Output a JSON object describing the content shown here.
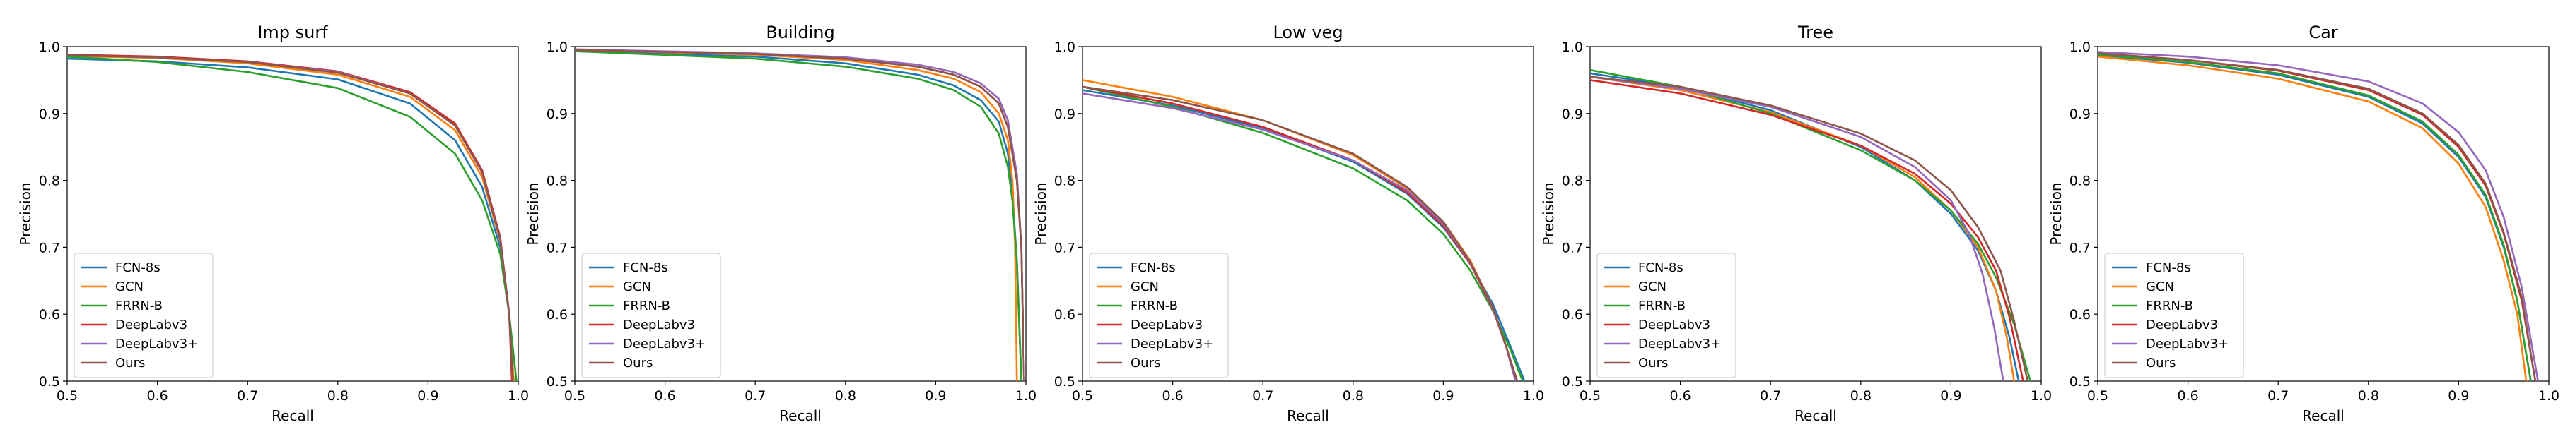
{
  "chart_data": [
    {
      "type": "line",
      "title": "Imp surf",
      "xlabel": "Recall",
      "ylabel": "Precision",
      "xlim": [
        0.5,
        1.0
      ],
      "ylim": [
        0.5,
        1.0
      ],
      "xticks": [
        "0.5",
        "0.6",
        "0.7",
        "0.8",
        "0.9",
        "1.0"
      ],
      "yticks": [
        "0.5",
        "0.6",
        "0.7",
        "0.8",
        "0.9",
        "1.0"
      ],
      "legend_position": "lower-left",
      "series": [
        {
          "name": "FCN-8s",
          "color": "#1f77b4",
          "x": [
            0.5,
            0.6,
            0.7,
            0.8,
            0.88,
            0.93,
            0.96,
            0.98,
            0.99,
            0.995
          ],
          "y": [
            0.982,
            0.978,
            0.969,
            0.951,
            0.915,
            0.86,
            0.79,
            0.7,
            0.6,
            0.5
          ]
        },
        {
          "name": "GCN",
          "color": "#ff7f0e",
          "x": [
            0.5,
            0.6,
            0.7,
            0.8,
            0.88,
            0.93,
            0.96,
            0.98,
            0.99,
            0.995
          ],
          "y": [
            0.986,
            0.983,
            0.975,
            0.958,
            0.925,
            0.875,
            0.805,
            0.71,
            0.6,
            0.5
          ]
        },
        {
          "name": "FRRN-B",
          "color": "#2ca02c",
          "x": [
            0.5,
            0.6,
            0.7,
            0.8,
            0.88,
            0.93,
            0.96,
            0.98,
            0.99,
            0.998
          ],
          "y": [
            0.985,
            0.977,
            0.962,
            0.938,
            0.895,
            0.84,
            0.77,
            0.69,
            0.6,
            0.5
          ]
        },
        {
          "name": "DeepLabv3",
          "color": "#d62728",
          "x": [
            0.5,
            0.6,
            0.7,
            0.8,
            0.88,
            0.93,
            0.96,
            0.98,
            0.99,
            0.993
          ],
          "y": [
            0.988,
            0.985,
            0.978,
            0.963,
            0.932,
            0.885,
            0.815,
            0.715,
            0.6,
            0.5
          ]
        },
        {
          "name": "DeepLabv3+",
          "color": "#9467bd",
          "x": [
            0.5,
            0.6,
            0.7,
            0.8,
            0.88,
            0.93,
            0.96,
            0.98,
            0.99,
            0.994
          ],
          "y": [
            0.987,
            0.984,
            0.977,
            0.962,
            0.93,
            0.882,
            0.812,
            0.712,
            0.6,
            0.5
          ]
        },
        {
          "name": "Ours",
          "color": "#8c564b",
          "x": [
            0.5,
            0.6,
            0.7,
            0.8,
            0.88,
            0.93,
            0.96,
            0.98,
            0.99,
            0.994
          ],
          "y": [
            0.987,
            0.984,
            0.977,
            0.961,
            0.93,
            0.882,
            0.812,
            0.712,
            0.6,
            0.5
          ]
        }
      ]
    },
    {
      "type": "line",
      "title": "Building",
      "xlabel": "Recall",
      "ylabel": "Precision",
      "xlim": [
        0.5,
        1.0
      ],
      "ylim": [
        0.5,
        1.0
      ],
      "xticks": [
        "0.5",
        "0.6",
        "0.7",
        "0.8",
        "0.9",
        "1.0"
      ],
      "yticks": [
        "0.5",
        "0.6",
        "0.7",
        "0.8",
        "0.9",
        "1.0"
      ],
      "legend_position": "lower-left",
      "series": [
        {
          "name": "FCN-8s",
          "color": "#1f77b4",
          "x": [
            0.5,
            0.7,
            0.8,
            0.88,
            0.92,
            0.95,
            0.97,
            0.98,
            0.985,
            0.99,
            0.995
          ],
          "y": [
            0.993,
            0.985,
            0.975,
            0.958,
            0.942,
            0.92,
            0.888,
            0.84,
            0.78,
            0.68,
            0.5
          ]
        },
        {
          "name": "GCN",
          "color": "#ff7f0e",
          "x": [
            0.5,
            0.7,
            0.8,
            0.88,
            0.92,
            0.95,
            0.97,
            0.98,
            0.985,
            0.988,
            0.99
          ],
          "y": [
            0.995,
            0.988,
            0.98,
            0.965,
            0.952,
            0.932,
            0.9,
            0.86,
            0.8,
            0.7,
            0.5
          ]
        },
        {
          "name": "FRRN-B",
          "color": "#2ca02c",
          "x": [
            0.5,
            0.7,
            0.8,
            0.88,
            0.92,
            0.95,
            0.97,
            0.98,
            0.985,
            0.99,
            0.995
          ],
          "y": [
            0.993,
            0.982,
            0.97,
            0.952,
            0.935,
            0.91,
            0.87,
            0.82,
            0.77,
            0.68,
            0.5
          ]
        },
        {
          "name": "DeepLabv3",
          "color": "#d62728",
          "x": [
            0.5,
            0.7,
            0.8,
            0.88,
            0.92,
            0.95,
            0.97,
            0.98,
            0.99,
            0.995,
            0.998
          ],
          "y": [
            0.995,
            0.989,
            0.982,
            0.97,
            0.958,
            0.94,
            0.915,
            0.88,
            0.8,
            0.7,
            0.5
          ]
        },
        {
          "name": "DeepLabv3+",
          "color": "#9467bd",
          "x": [
            0.5,
            0.7,
            0.8,
            0.88,
            0.92,
            0.95,
            0.97,
            0.98,
            0.99,
            0.995,
            0.998
          ],
          "y": [
            0.996,
            0.99,
            0.984,
            0.973,
            0.962,
            0.945,
            0.922,
            0.89,
            0.81,
            0.7,
            0.5
          ]
        },
        {
          "name": "Ours",
          "color": "#8c564b",
          "x": [
            0.5,
            0.7,
            0.8,
            0.88,
            0.92,
            0.95,
            0.97,
            0.98,
            0.99,
            0.995,
            0.998
          ],
          "y": [
            0.995,
            0.989,
            0.982,
            0.97,
            0.958,
            0.94,
            0.915,
            0.88,
            0.8,
            0.7,
            0.5
          ]
        }
      ]
    },
    {
      "type": "line",
      "title": "Low veg",
      "xlabel": "Recall",
      "ylabel": "Precision",
      "xlim": [
        0.5,
        1.0
      ],
      "ylim": [
        0.5,
        1.0
      ],
      "xticks": [
        "0.5",
        "0.6",
        "0.7",
        "0.8",
        "0.9",
        "1.0"
      ],
      "yticks": [
        "0.5",
        "0.6",
        "0.7",
        "0.8",
        "0.9",
        "1.0"
      ],
      "legend_position": "lower-left",
      "series": [
        {
          "name": "FCN-8s",
          "color": "#1f77b4",
          "x": [
            0.5,
            0.6,
            0.7,
            0.8,
            0.86,
            0.9,
            0.93,
            0.955,
            0.975,
            0.99
          ],
          "y": [
            0.935,
            0.912,
            0.878,
            0.828,
            0.78,
            0.73,
            0.675,
            0.615,
            0.55,
            0.5
          ]
        },
        {
          "name": "GCN",
          "color": "#ff7f0e",
          "x": [
            0.5,
            0.6,
            0.7,
            0.8,
            0.86,
            0.9,
            0.93,
            0.955,
            0.97,
            0.98
          ],
          "y": [
            0.95,
            0.925,
            0.89,
            0.838,
            0.788,
            0.738,
            0.68,
            0.61,
            0.55,
            0.5
          ]
        },
        {
          "name": "FRRN-B",
          "color": "#2ca02c",
          "x": [
            0.5,
            0.6,
            0.7,
            0.8,
            0.86,
            0.9,
            0.93,
            0.955,
            0.975,
            0.988
          ],
          "y": [
            0.94,
            0.91,
            0.871,
            0.818,
            0.77,
            0.72,
            0.665,
            0.605,
            0.545,
            0.5
          ]
        },
        {
          "name": "DeepLabv3",
          "color": "#d62728",
          "x": [
            0.5,
            0.6,
            0.7,
            0.8,
            0.86,
            0.9,
            0.93,
            0.955,
            0.97,
            0.98
          ],
          "y": [
            0.94,
            0.915,
            0.88,
            0.83,
            0.782,
            0.732,
            0.675,
            0.607,
            0.55,
            0.5
          ]
        },
        {
          "name": "DeepLabv3+",
          "color": "#9467bd",
          "x": [
            0.5,
            0.6,
            0.7,
            0.8,
            0.86,
            0.9,
            0.93,
            0.955,
            0.97,
            0.98
          ],
          "y": [
            0.93,
            0.908,
            0.876,
            0.83,
            0.785,
            0.735,
            0.677,
            0.608,
            0.55,
            0.5
          ]
        },
        {
          "name": "Ours",
          "color": "#8c564b",
          "x": [
            0.5,
            0.6,
            0.7,
            0.8,
            0.86,
            0.9,
            0.93,
            0.955,
            0.97,
            0.982
          ],
          "y": [
            0.94,
            0.92,
            0.89,
            0.84,
            0.79,
            0.738,
            0.678,
            0.61,
            0.55,
            0.5
          ]
        }
      ]
    },
    {
      "type": "line",
      "title": "Tree",
      "xlabel": "Recall",
      "ylabel": "Precision",
      "xlim": [
        0.5,
        1.0
      ],
      "ylim": [
        0.5,
        1.0
      ],
      "xticks": [
        "0.5",
        "0.6",
        "0.7",
        "0.8",
        "0.9",
        "1.0"
      ],
      "yticks": [
        "0.5",
        "0.6",
        "0.7",
        "0.8",
        "0.9",
        "1.0"
      ],
      "legend_position": "lower-left",
      "series": [
        {
          "name": "FCN-8s",
          "color": "#1f77b4",
          "x": [
            0.5,
            0.6,
            0.7,
            0.8,
            0.86,
            0.9,
            0.93,
            0.95,
            0.965,
            0.975
          ],
          "y": [
            0.96,
            0.94,
            0.905,
            0.85,
            0.8,
            0.75,
            0.695,
            0.635,
            0.565,
            0.5
          ]
        },
        {
          "name": "GCN",
          "color": "#ff7f0e",
          "x": [
            0.5,
            0.6,
            0.7,
            0.8,
            0.86,
            0.9,
            0.93,
            0.95,
            0.962,
            0.97
          ],
          "y": [
            0.955,
            0.935,
            0.902,
            0.852,
            0.805,
            0.755,
            0.7,
            0.635,
            0.565,
            0.5
          ]
        },
        {
          "name": "FRRN-B",
          "color": "#2ca02c",
          "x": [
            0.5,
            0.6,
            0.7,
            0.8,
            0.86,
            0.9,
            0.93,
            0.95,
            0.97,
            0.988
          ],
          "y": [
            0.965,
            0.94,
            0.9,
            0.845,
            0.8,
            0.755,
            0.705,
            0.655,
            0.585,
            0.5
          ]
        },
        {
          "name": "DeepLabv3",
          "color": "#d62728",
          "x": [
            0.5,
            0.6,
            0.7,
            0.8,
            0.86,
            0.9,
            0.93,
            0.95,
            0.965,
            0.98
          ],
          "y": [
            0.95,
            0.93,
            0.898,
            0.852,
            0.81,
            0.765,
            0.715,
            0.665,
            0.595,
            0.5
          ]
        },
        {
          "name": "DeepLabv3+",
          "color": "#9467bd",
          "x": [
            0.5,
            0.6,
            0.7,
            0.8,
            0.86,
            0.9,
            0.92,
            0.935,
            0.948,
            0.958
          ],
          "y": [
            0.955,
            0.937,
            0.91,
            0.865,
            0.82,
            0.77,
            0.72,
            0.66,
            0.58,
            0.5
          ]
        },
        {
          "name": "Ours",
          "color": "#8c564b",
          "x": [
            0.5,
            0.6,
            0.7,
            0.8,
            0.86,
            0.9,
            0.93,
            0.955,
            0.97,
            0.985
          ],
          "y": [
            0.955,
            0.94,
            0.912,
            0.87,
            0.83,
            0.785,
            0.73,
            0.665,
            0.59,
            0.5
          ]
        }
      ]
    },
    {
      "type": "line",
      "title": "Car",
      "xlabel": "Recall",
      "ylabel": "Precision",
      "xlim": [
        0.5,
        1.0
      ],
      "ylim": [
        0.5,
        1.0
      ],
      "xticks": [
        "0.5",
        "0.6",
        "0.7",
        "0.8",
        "0.9",
        "1.0"
      ],
      "yticks": [
        "0.5",
        "0.6",
        "0.7",
        "0.8",
        "0.9",
        "1.0"
      ],
      "legend_position": "lower-left",
      "series": [
        {
          "name": "FCN-8s",
          "color": "#1f77b4",
          "x": [
            0.5,
            0.6,
            0.7,
            0.8,
            0.86,
            0.9,
            0.93,
            0.95,
            0.965,
            0.98
          ],
          "y": [
            0.987,
            0.976,
            0.958,
            0.925,
            0.885,
            0.835,
            0.775,
            0.7,
            0.62,
            0.5
          ]
        },
        {
          "name": "GCN",
          "color": "#ff7f0e",
          "x": [
            0.5,
            0.6,
            0.7,
            0.8,
            0.86,
            0.9,
            0.93,
            0.95,
            0.965,
            0.975
          ],
          "y": [
            0.985,
            0.972,
            0.952,
            0.918,
            0.878,
            0.825,
            0.76,
            0.68,
            0.6,
            0.5
          ]
        },
        {
          "name": "FRRN-B",
          "color": "#2ca02c",
          "x": [
            0.5,
            0.6,
            0.7,
            0.8,
            0.86,
            0.9,
            0.93,
            0.95,
            0.965,
            0.98
          ],
          "y": [
            0.988,
            0.977,
            0.96,
            0.927,
            0.888,
            0.838,
            0.778,
            0.703,
            0.62,
            0.5
          ]
        },
        {
          "name": "DeepLabv3",
          "color": "#d62728",
          "x": [
            0.5,
            0.6,
            0.7,
            0.8,
            0.86,
            0.9,
            0.93,
            0.95,
            0.97,
            0.985
          ],
          "y": [
            0.99,
            0.98,
            0.964,
            0.935,
            0.898,
            0.85,
            0.792,
            0.72,
            0.62,
            0.5
          ]
        },
        {
          "name": "DeepLabv3+",
          "color": "#9467bd",
          "x": [
            0.5,
            0.6,
            0.7,
            0.8,
            0.86,
            0.9,
            0.93,
            0.95,
            0.97,
            0.988
          ],
          "y": [
            0.992,
            0.985,
            0.972,
            0.948,
            0.915,
            0.872,
            0.815,
            0.745,
            0.64,
            0.5
          ]
        },
        {
          "name": "Ours",
          "color": "#8c564b",
          "x": [
            0.5,
            0.6,
            0.7,
            0.8,
            0.86,
            0.9,
            0.93,
            0.95,
            0.97,
            0.985
          ],
          "y": [
            0.99,
            0.98,
            0.965,
            0.937,
            0.9,
            0.853,
            0.795,
            0.722,
            0.625,
            0.5
          ]
        }
      ]
    }
  ]
}
